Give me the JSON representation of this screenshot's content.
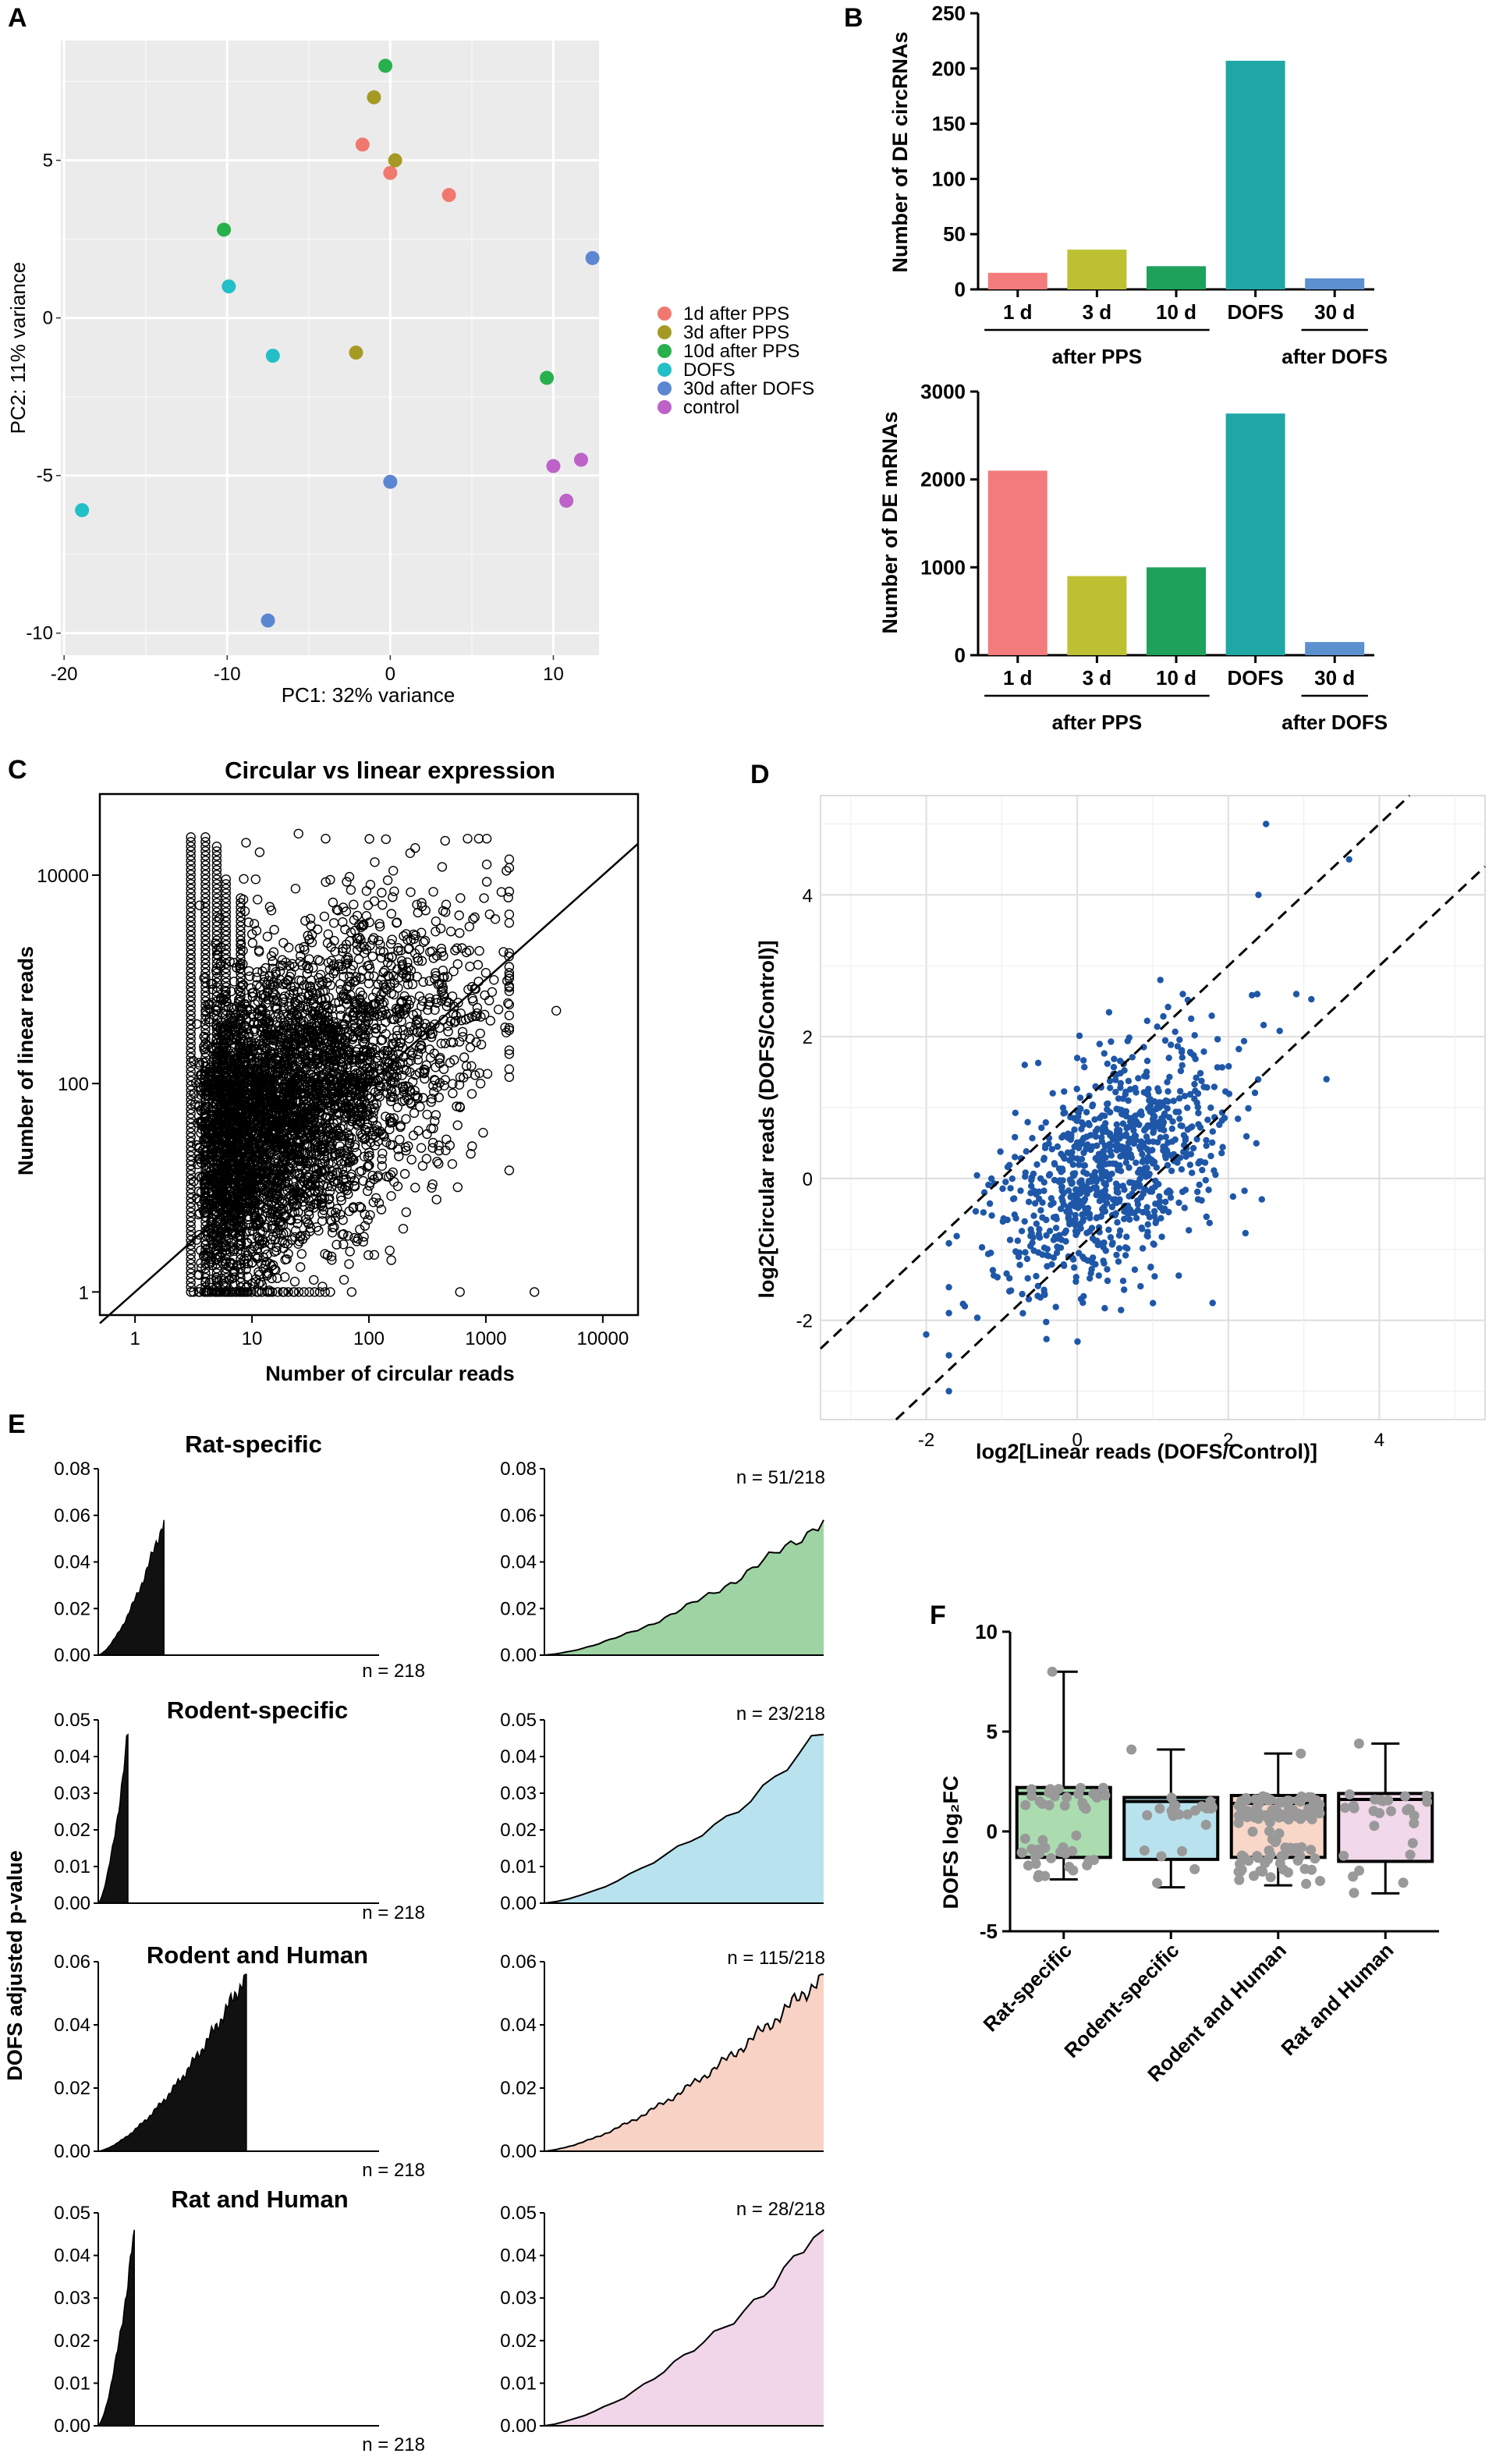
{
  "panel_labels": {
    "a": "A",
    "b": "B",
    "c": "C",
    "d": "D",
    "e": "E",
    "f": "F"
  },
  "chart_data": [
    {
      "panel": "A",
      "type": "scatter",
      "title": "",
      "xlabel": "PC1: 32% variance",
      "ylabel": "PC2: 11% variance",
      "xlim": [
        -20.2,
        12.8
      ],
      "ylim": [
        -10.7,
        8.8
      ],
      "xticks": [
        -20,
        -10,
        0,
        10
      ],
      "yticks": [
        5,
        0,
        -5,
        -10
      ],
      "ytick_labels": [
        "5",
        "0",
        "-5",
        "-10"
      ],
      "legend_position": "right",
      "series": [
        {
          "name": "1d after PPS",
          "color": "#f1786f",
          "points": [
            [
              -1.7,
              5.5
            ],
            [
              0,
              4.6
            ],
            [
              3.6,
              3.9
            ]
          ]
        },
        {
          "name": "3d after PPS",
          "color": "#a59a24",
          "points": [
            [
              -1,
              7
            ],
            [
              0.3,
              5
            ],
            [
              -2.1,
              -1.1
            ]
          ]
        },
        {
          "name": "10d after PPS",
          "color": "#27b04b",
          "points": [
            [
              -0.3,
              8
            ],
            [
              -10.2,
              2.8
            ],
            [
              9.6,
              -1.9
            ]
          ]
        },
        {
          "name": "DOFS",
          "color": "#22bfc7",
          "points": [
            [
              -9.9,
              1
            ],
            [
              -7.2,
              -1.2
            ],
            [
              -18.9,
              -6.1
            ]
          ]
        },
        {
          "name": "30d after DOFS",
          "color": "#5b86d2",
          "points": [
            [
              12.4,
              1.9
            ],
            [
              0,
              -5.2
            ],
            [
              -7.5,
              -9.6
            ]
          ]
        },
        {
          "name": "control",
          "color": "#bd62c9",
          "points": [
            [
              10,
              -4.7
            ],
            [
              11.7,
              -4.5
            ],
            [
              10.8,
              -5.8
            ]
          ]
        }
      ]
    },
    {
      "panel": "B-top",
      "type": "bar",
      "ylabel": "Number of DE circRNAs",
      "ylim": [
        0,
        250
      ],
      "yticks": [
        0,
        50,
        100,
        150,
        200,
        250
      ],
      "categories": [
        "1 d",
        "3 d",
        "10 d",
        "DOFS",
        "30 d"
      ],
      "values": [
        15,
        36,
        21,
        207,
        10
      ],
      "colors": [
        "#f37b7b",
        "#bec033",
        "#1ea15a",
        "#1fa7a5",
        "#5b91cf"
      ],
      "group_labels": [
        "after PPS",
        "after DOFS"
      ]
    },
    {
      "panel": "B-bottom",
      "type": "bar",
      "ylabel": "Number of DE mRNAs",
      "ylim": [
        0,
        3000
      ],
      "yticks": [
        0,
        1000,
        2000,
        3000
      ],
      "categories": [
        "1 d",
        "3 d",
        "10 d",
        "DOFS",
        "30 d"
      ],
      "values": [
        2100,
        900,
        1000,
        2750,
        150
      ],
      "colors": [
        "#f37b7b",
        "#bec033",
        "#1ea15a",
        "#1fa7a5",
        "#5b91cf"
      ],
      "group_labels": [
        "after PPS",
        "after DOFS"
      ]
    },
    {
      "panel": "C",
      "type": "scatter",
      "title": "Circular vs linear expression",
      "xlabel": "Number of circular reads",
      "ylabel": "Number of linear reads",
      "xscale": "log10",
      "yscale": "log10",
      "xlim": [
        0.5,
        20000
      ],
      "ylim": [
        0.6,
        60000
      ],
      "xticks": [
        1,
        10,
        100,
        1000,
        10000
      ],
      "xtick_labels": [
        "1",
        "10",
        "100",
        "1000",
        "10000"
      ],
      "yticks": [
        1,
        100,
        10000
      ],
      "ytick_labels": [
        "1",
        "100",
        "10000"
      ],
      "marker": "open circle",
      "note": "dense cloud of ~10000 points; reference line y = x",
      "reference_line": "y = x"
    },
    {
      "panel": "D",
      "type": "scatter",
      "xlabel": "log2[Linear reads (DOFS/Control)]",
      "ylabel": "log2[Circular reads (DOFS/Control)]",
      "xlim": [
        -3.4,
        5.4
      ],
      "ylim": [
        -3.4,
        5.4
      ],
      "xticks": [
        -2,
        0,
        2,
        4
      ],
      "yticks": [
        -2,
        0,
        2,
        4
      ],
      "point_color": "#1f57a8",
      "dashed_lines": [
        "y = x + 1",
        "y = x - 1"
      ],
      "highlight_points": [
        [
          2.5,
          5
        ],
        [
          3.6,
          4.5
        ],
        [
          2.4,
          4
        ],
        [
          1.1,
          2.8
        ],
        [
          -1.7,
          -3
        ],
        [
          -2,
          -2.2
        ],
        [
          3.3,
          1.4
        ],
        [
          2.9,
          2.6
        ]
      ]
    },
    {
      "panel": "E",
      "type": "area",
      "ylabel": "DOFS adjusted p-value",
      "rows": [
        {
          "title": "Rat-specific",
          "ymax": 0.08,
          "yticks": [
            0.0,
            0.02,
            0.04,
            0.06,
            0.08
          ],
          "n_total": "n = 218",
          "n_subset": "n = 51/218",
          "count": 51,
          "pmax": 0.058,
          "fill": "#9ed4a3"
        },
        {
          "title": "Rodent-specific",
          "ymax": 0.05,
          "yticks": [
            0.0,
            0.01,
            0.02,
            0.03,
            0.04,
            0.05
          ],
          "n_total": "n = 218",
          "n_subset": "n = 23/218",
          "count": 23,
          "pmax": 0.046,
          "fill": "#b8e3ee"
        },
        {
          "title": "Rodent and Human",
          "ymax": 0.06,
          "yticks": [
            0.0,
            0.02,
            0.04,
            0.06
          ],
          "n_total": "n = 218",
          "n_subset": "n = 115/218",
          "count": 115,
          "pmax": 0.056,
          "fill": "#f8d3c5"
        },
        {
          "title": "Rat and Human",
          "ymax": 0.05,
          "yticks": [
            0.0,
            0.01,
            0.02,
            0.03,
            0.04,
            0.05
          ],
          "n_total": "n = 218",
          "n_subset": "n = 28/218",
          "count": 28,
          "pmax": 0.046,
          "fill": "#f1d6e9"
        }
      ]
    },
    {
      "panel": "F",
      "type": "box",
      "ylabel": "DOFS log₂FC",
      "ylim": [
        -5,
        10
      ],
      "yticks": [
        10,
        5,
        0,
        -5
      ],
      "categories": [
        "Rat-specific",
        "Rodent-specific",
        "Rodent and Human",
        "Rat and Human"
      ],
      "fills": [
        "#aadcb0",
        "#b8e3ee",
        "#f8d6c8",
        "#f1d8ea"
      ],
      "boxes": [
        {
          "min": -2.4,
          "q1": -1.3,
          "median": 1.9,
          "q3": 2.2,
          "max": 8
        },
        {
          "min": -2.8,
          "q1": -1.4,
          "median": 1.5,
          "q3": 1.7,
          "max": 4.1
        },
        {
          "min": -2.7,
          "q1": -1.3,
          "median": 1.4,
          "q3": 1.8,
          "max": 3.9
        },
        {
          "min": -3.1,
          "q1": -1.5,
          "median": 1.6,
          "q3": 1.9,
          "max": 4.4
        }
      ],
      "point_color": "#999999"
    }
  ]
}
